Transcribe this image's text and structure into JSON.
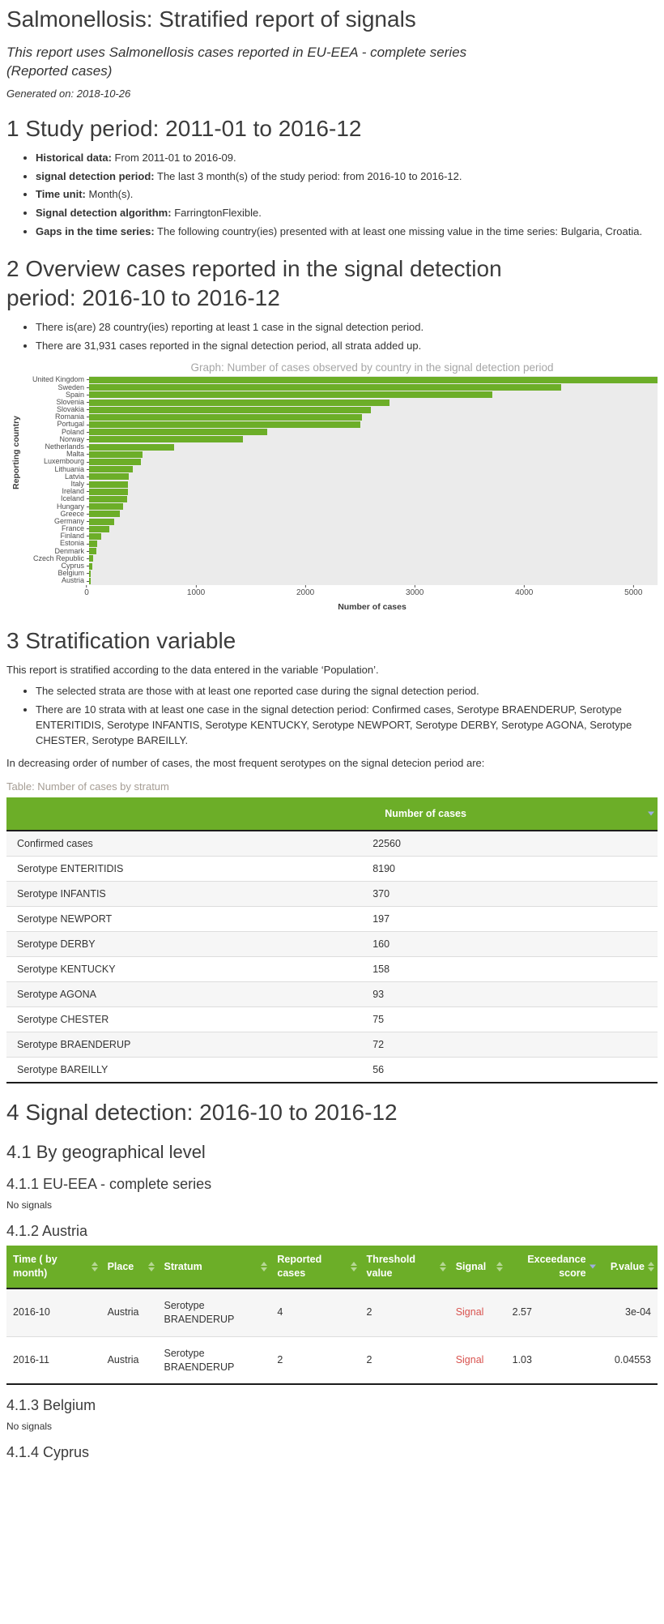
{
  "report": {
    "title": "Salmonellosis: Stratified report of signals",
    "subtitle": "This report uses Salmonellosis cases reported in EU-EEA - complete series (Reported cases)",
    "generated_on": "Generated on: 2018-10-26"
  },
  "colors": {
    "accent_green": "#6CAE28",
    "signal_red": "#D9534F",
    "panel_gray": "#EBEBEB",
    "caption_gray": "#A59D94",
    "active_sort_arrow": "#9FADE3"
  },
  "section1": {
    "heading": "1 Study period: 2011-01 to 2016-12",
    "bullets": [
      {
        "label": "Historical data:",
        "text": "From 2011-01 to 2016-09."
      },
      {
        "label": "signal detection period:",
        "text": "The last 3 month(s) of the study period: from 2016-10 to 2016-12."
      },
      {
        "label": "Time unit:",
        "text": "Month(s)."
      },
      {
        "label": "Signal detection algorithm:",
        "text": "FarringtonFlexible."
      },
      {
        "label": "Gaps in the time series:",
        "text": "The following country(ies) presented with at least one missing value in the time series: Bulgaria, Croatia."
      }
    ]
  },
  "section2": {
    "heading": "2 Overview cases reported in the signal detection period: 2016-10 to 2016-12",
    "bullets": [
      {
        "label": "",
        "text": "There is(are) 28 country(ies) reporting at least 1 case in the signal detection period."
      },
      {
        "label": "",
        "text": "There are 31,931 cases reported in the signal detection period, all strata added up."
      }
    ]
  },
  "chart_data": {
    "type": "bar",
    "orientation": "horizontal",
    "title": "Graph: Number of cases observed by country in the signal detection period",
    "xlabel": "Number of cases",
    "ylabel": "Reporting country",
    "xlim": [
      0,
      5220
    ],
    "xticks": [
      0,
      1000,
      2000,
      3000,
      4000,
      5000
    ],
    "grid": false,
    "categories": [
      "United Kingdom",
      "Sweden",
      "Spain",
      "Slovenia",
      "Slovakia",
      "Romania",
      "Portugal",
      "Poland",
      "Norway",
      "Netherlands",
      "Malta",
      "Luxembourg",
      "Lithuania",
      "Latvia",
      "Italy",
      "Ireland",
      "Iceland",
      "Hungary",
      "Greece",
      "Germany",
      "France",
      "Finland",
      "Estonia",
      "Denmark",
      "Czech Republic",
      "Cyprus",
      "Belgium",
      "Austria"
    ],
    "values": [
      5220,
      4337,
      3704,
      2755,
      2587,
      2505,
      2493,
      1634,
      1411,
      781,
      489,
      477,
      399,
      362,
      360,
      357,
      352,
      312,
      285,
      227,
      188,
      109,
      78,
      70,
      39,
      31,
      16,
      12
    ]
  },
  "section3": {
    "heading": "3 Stratification variable",
    "para1": "This report is stratified according to the data entered in the variable ‘Population’.",
    "bullets": [
      {
        "label": "",
        "text": "The selected strata are those with at least one reported case during the signal detection period."
      },
      {
        "label": "",
        "text": "There are 10 strata with at least one case in the signal detection period: Confirmed cases, Serotype BRAENDERUP, Serotype ENTERITIDIS, Serotype INFANTIS, Serotype KENTUCKY, Serotype NEWPORT, Serotype DERBY, Serotype AGONA, Serotype CHESTER, Serotype BAREILLY."
      }
    ],
    "para2": "In decreasing order of number of cases, the most frequent serotypes on the signal detecion period are:"
  },
  "stratum_table": {
    "caption": "Table: Number of cases by stratum",
    "header": "Number of cases",
    "rows": [
      [
        "Confirmed cases",
        "22560"
      ],
      [
        "Serotype ENTERITIDIS",
        "8190"
      ],
      [
        "Serotype INFANTIS",
        "370"
      ],
      [
        "Serotype NEWPORT",
        "197"
      ],
      [
        "Serotype DERBY",
        "160"
      ],
      [
        "Serotype KENTUCKY",
        "158"
      ],
      [
        "Serotype AGONA",
        "93"
      ],
      [
        "Serotype CHESTER",
        "75"
      ],
      [
        "Serotype BRAENDERUP",
        "72"
      ],
      [
        "Serotype BAREILLY",
        "56"
      ]
    ]
  },
  "section4": {
    "heading": "4 Signal detection: 2016-10 to 2016-12",
    "sub_heading": "4.1 By geographical level",
    "subsections": [
      {
        "heading": "4.1.1 EU-EEA - complete series",
        "note": "No signals"
      },
      {
        "heading": "4.1.2 Austria",
        "note": ""
      },
      {
        "heading": "4.1.3 Belgium",
        "note": "No signals"
      },
      {
        "heading": "4.1.4 Cyprus",
        "note": ""
      }
    ]
  },
  "austria_table": {
    "columns": [
      {
        "label": "Time ( by month)",
        "sort": "both"
      },
      {
        "label": "Place",
        "sort": "both"
      },
      {
        "label": "Stratum",
        "sort": "both"
      },
      {
        "label": "Reported cases",
        "sort": "both"
      },
      {
        "label": "Threshold value",
        "sort": "both"
      },
      {
        "label": "Signal",
        "sort": "both"
      },
      {
        "label": "Exceedance score",
        "sort": "desc"
      },
      {
        "label": "P.value",
        "sort": "both"
      }
    ],
    "rows": [
      [
        "2016-10",
        "Austria",
        "Serotype BRAENDERUP",
        "4",
        "2",
        "Signal",
        "2.57",
        "3e-04"
      ],
      [
        "2016-11",
        "Austria",
        "Serotype BRAENDERUP",
        "2",
        "2",
        "Signal",
        "1.03",
        "0.04553"
      ]
    ]
  }
}
